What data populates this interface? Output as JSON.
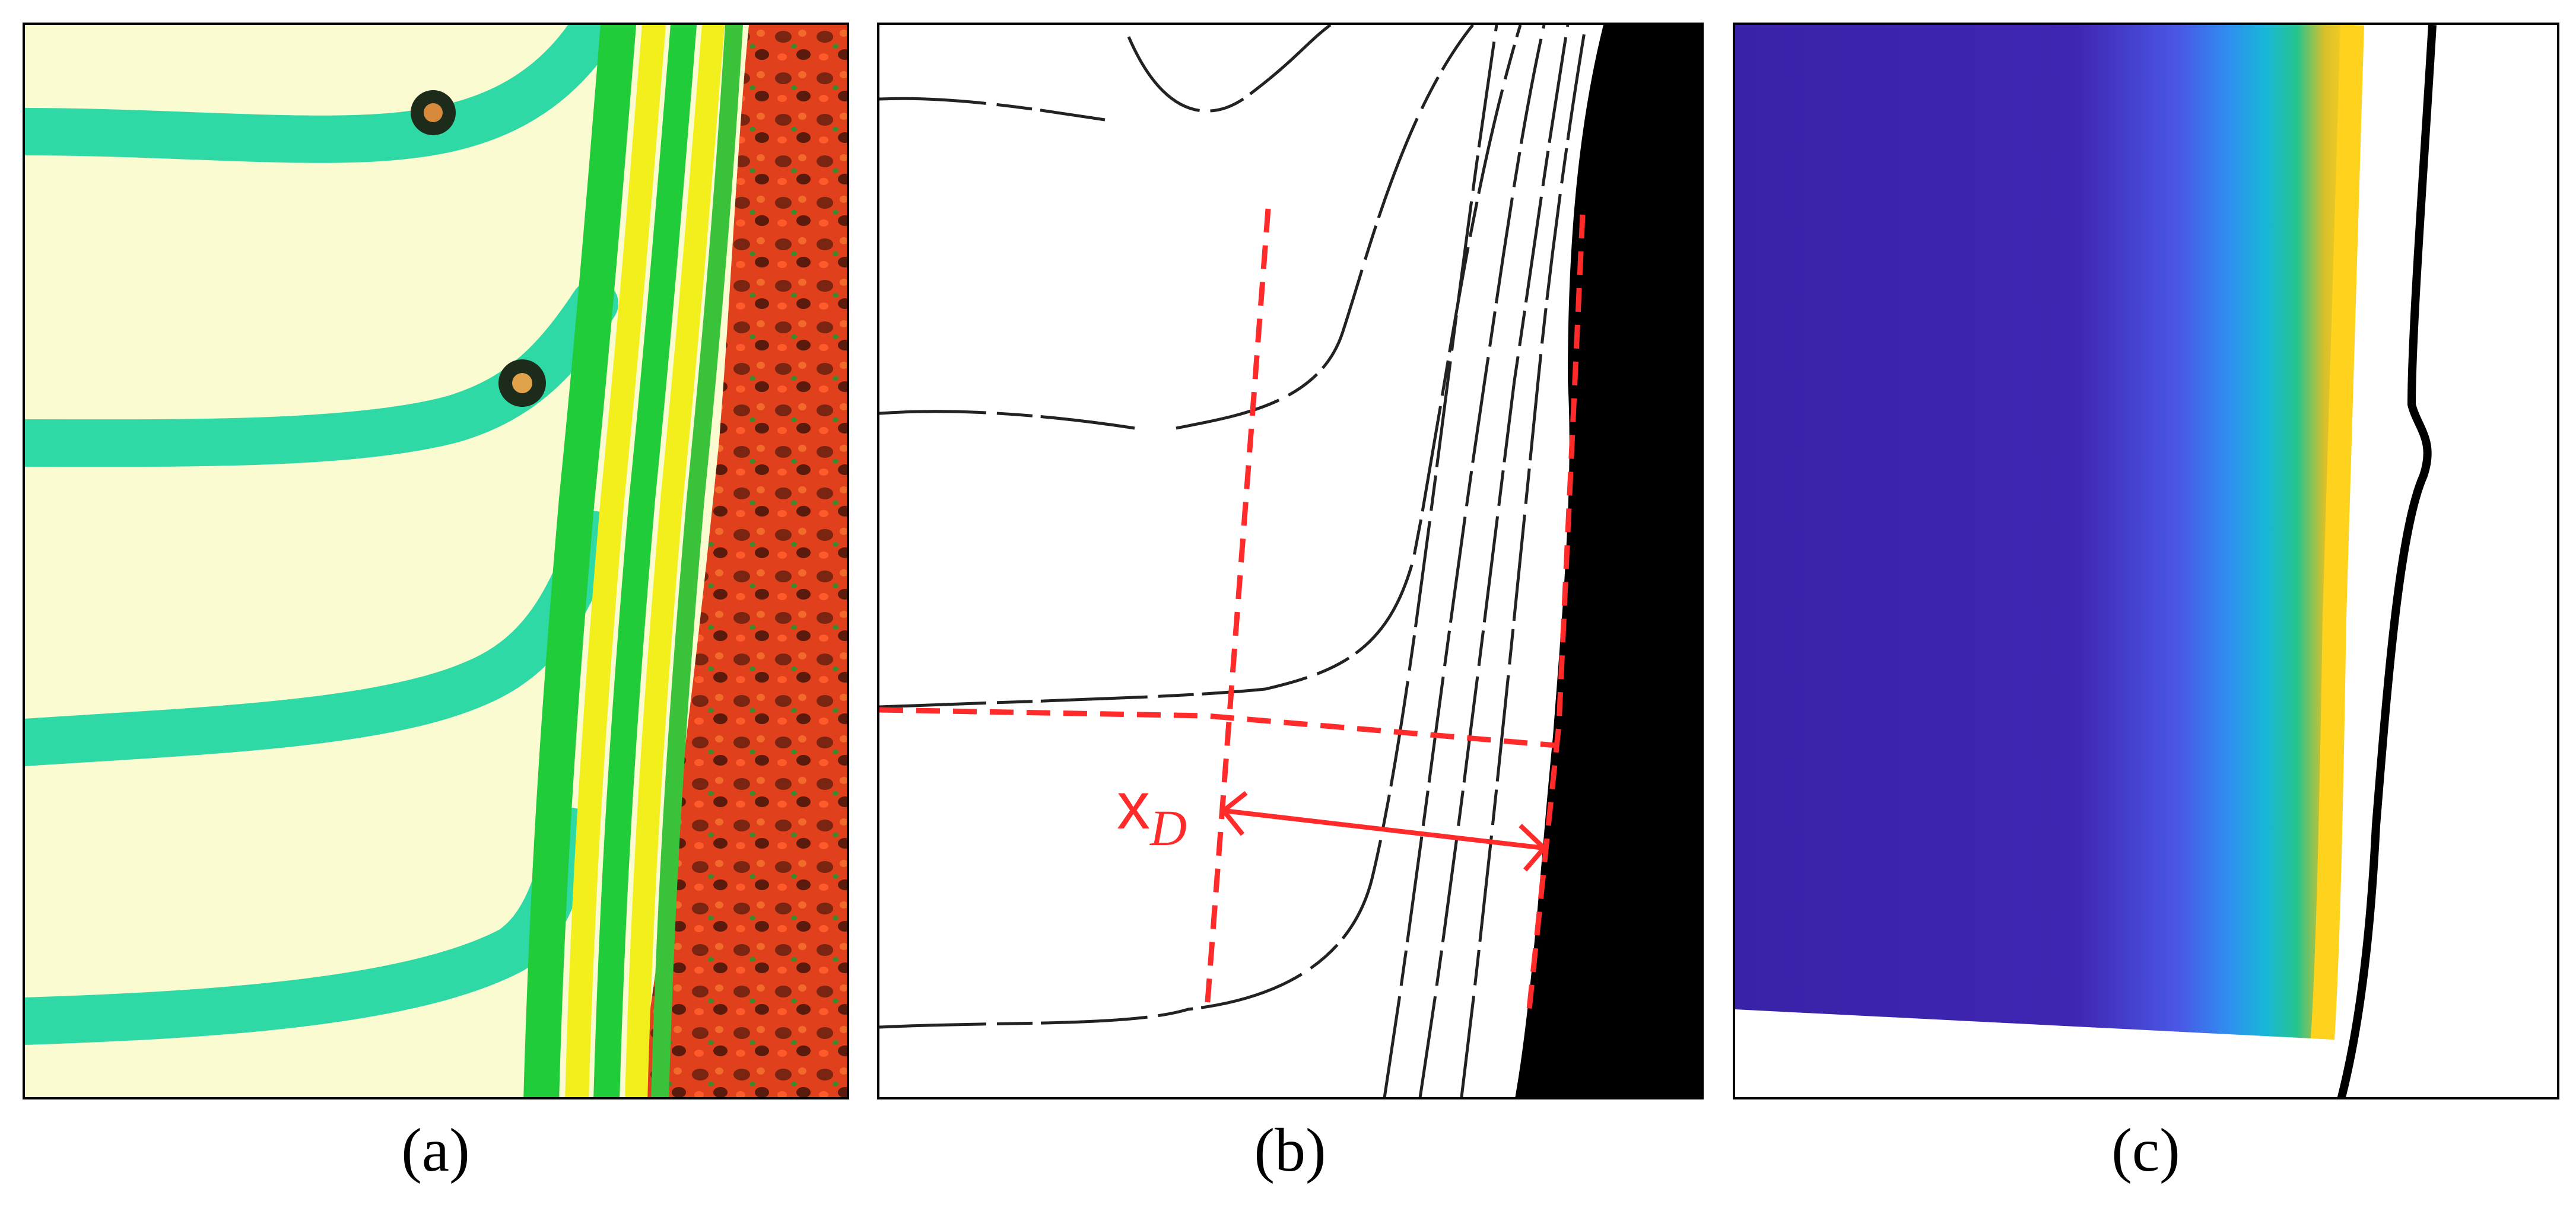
{
  "figure": {
    "panels": [
      {
        "id": "a",
        "caption": "(a)",
        "content": "pseudocolor-image"
      },
      {
        "id": "b",
        "caption": "(b)",
        "content": "contour-lines-with-measurement",
        "measure_label": "x",
        "measure_subscript": "D"
      },
      {
        "id": "c",
        "caption": "(c)",
        "content": "color-gradient-map"
      }
    ]
  },
  "colors": {
    "cream": "#fbfbd2",
    "teal_band": "#2fd9a6",
    "green_band": "#21cc3a",
    "yellow_band": "#f2ef1c",
    "red_texture": "#e0401c",
    "dark_red": "#6a1e10",
    "annotation_red": "#ff2a2a",
    "contour": "#222222",
    "solid_black": "#000000",
    "gradient_purple": "#3f25b1",
    "gradient_blue": "#4a6cf2",
    "gradient_cyan": "#18b7d8",
    "gradient_yellow": "#ffd21e"
  }
}
